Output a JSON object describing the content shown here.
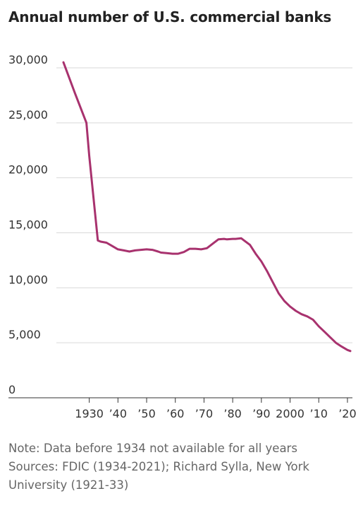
{
  "chart_data": {
    "type": "line",
    "title": "Annual number of U.S. commercial banks",
    "xlabel": "",
    "ylabel": "",
    "xlim": [
      1921,
      2021
    ],
    "ylim": [
      0,
      30000
    ],
    "y_ticks": [
      0,
      5000,
      10000,
      15000,
      20000,
      25000,
      30000
    ],
    "y_tick_labels": [
      "0",
      "5,000",
      "10,000",
      "15,000",
      "20,000",
      "25,000",
      "30,000"
    ],
    "x_ticks": [
      1930,
      1940,
      1950,
      1960,
      1970,
      1980,
      1990,
      2000,
      2010,
      2020
    ],
    "x_tick_labels": [
      "1930",
      "’40",
      "’50",
      "’60",
      "’70",
      "’80",
      "’90",
      "2000",
      "’10",
      "’20"
    ],
    "grid": true,
    "color": "#A8326E",
    "series": [
      {
        "x": [
          1921,
          1925,
          1929,
          1930,
          1933,
          1934,
          1936,
          1938,
          1940,
          1942,
          1944,
          1946,
          1948,
          1950,
          1952,
          1954,
          1955,
          1957,
          1959,
          1961,
          1963,
          1965,
          1967,
          1969,
          1971,
          1973,
          1975,
          1977,
          1978,
          1980,
          1981,
          1983,
          1984,
          1986,
          1988,
          1990,
          1992,
          1994,
          1996,
          1998,
          2000,
          2002,
          2004,
          2006,
          2008,
          2010,
          2012,
          2014,
          2016,
          2018,
          2020,
          2021
        ],
        "y": [
          30500,
          27700,
          25000,
          22000,
          14300,
          14200,
          14100,
          13800,
          13500,
          13400,
          13300,
          13400,
          13450,
          13500,
          13450,
          13300,
          13200,
          13150,
          13100,
          13100,
          13250,
          13550,
          13550,
          13500,
          13600,
          14000,
          14400,
          14450,
          14400,
          14450,
          14450,
          14500,
          14300,
          13900,
          13100,
          12400,
          11500,
          10500,
          9500,
          8800,
          8300,
          7900,
          7600,
          7400,
          7100,
          6500,
          6000,
          5500,
          5000,
          4650,
          4350,
          4250
        ]
      }
    ]
  },
  "notes": {
    "line1": "Note: Data before 1934 not available for all years",
    "line2": "Sources: FDIC (1934-2021); Richard Sylla, New York",
    "line3": "University (1921-33)"
  }
}
